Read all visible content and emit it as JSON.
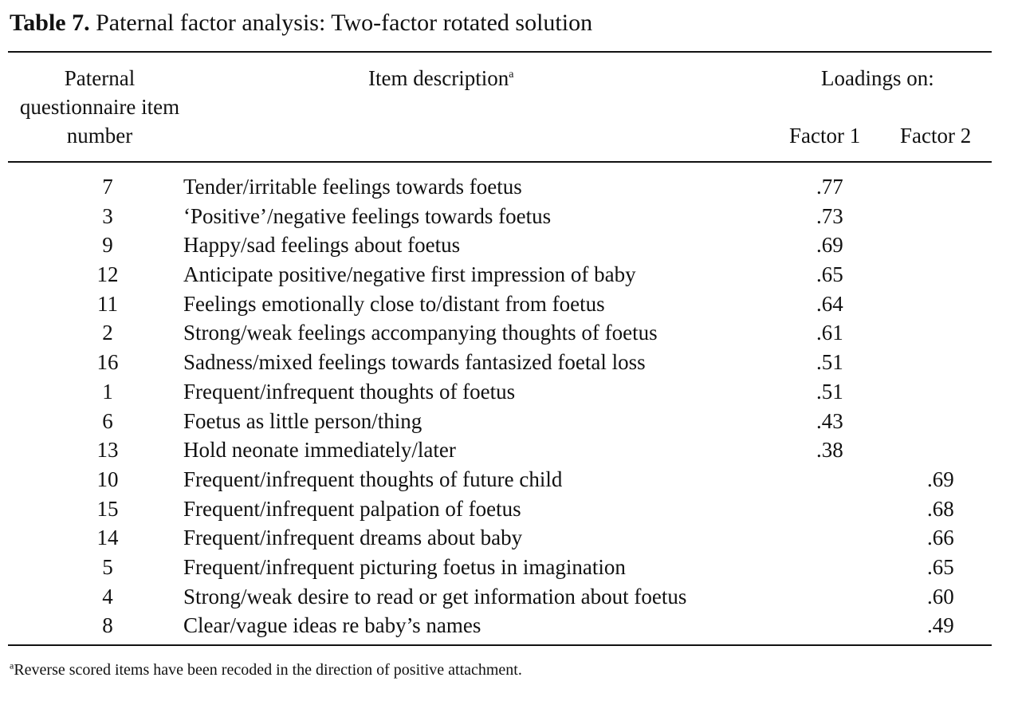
{
  "caption": {
    "label": "Table 7.",
    "text": " Paternal factor analysis: Two-factor rotated solution"
  },
  "header": {
    "item_number": "Paternal questionnaire item number",
    "item_description": "Item description",
    "item_description_note": "a",
    "loadings": "Loadings on:",
    "factor1": "Factor 1",
    "factor2": "Factor 2"
  },
  "rows": [
    {
      "num": "7",
      "desc": "Tender/irritable feelings towards foetus",
      "f1": ".77",
      "f2": ""
    },
    {
      "num": "3",
      "desc": "‘Positive’/negative feelings towards foetus",
      "f1": ".73",
      "f2": ""
    },
    {
      "num": "9",
      "desc": "Happy/sad feelings about foetus",
      "f1": ".69",
      "f2": ""
    },
    {
      "num": "12",
      "desc": "Anticipate positive/negative first impression of baby",
      "f1": ".65",
      "f2": ""
    },
    {
      "num": "11",
      "desc": "Feelings emotionally close to/distant from foetus",
      "f1": ".64",
      "f2": ""
    },
    {
      "num": "2",
      "desc": "Strong/weak feelings accompanying thoughts of foetus",
      "f1": ".61",
      "f2": ""
    },
    {
      "num": "16",
      "desc": "Sadness/mixed feelings towards fantasized foetal loss",
      "f1": ".51",
      "f2": ""
    },
    {
      "num": "1",
      "desc": "Frequent/infrequent thoughts of foetus",
      "f1": ".51",
      "f2": ""
    },
    {
      "num": "6",
      "desc": "Foetus as little person/thing",
      "f1": ".43",
      "f2": ""
    },
    {
      "num": "13",
      "desc": "Hold neonate immediately/later",
      "f1": ".38",
      "f2": ""
    },
    {
      "num": "10",
      "desc": "Frequent/infrequent thoughts of future child",
      "f1": "",
      "f2": ".69"
    },
    {
      "num": "15",
      "desc": "Frequent/infrequent palpation of foetus",
      "f1": "",
      "f2": ".68"
    },
    {
      "num": "14",
      "desc": "Frequent/infrequent dreams about baby",
      "f1": "",
      "f2": ".66"
    },
    {
      "num": "5",
      "desc": "Frequent/infrequent picturing foetus in imagination",
      "f1": "",
      "f2": ".65"
    },
    {
      "num": "4",
      "desc": "Strong/weak desire to read or get information about foetus",
      "f1": "",
      "f2": ".60"
    },
    {
      "num": "8",
      "desc": "Clear/vague ideas re baby’s names",
      "f1": "",
      "f2": ".49"
    }
  ],
  "footnote": {
    "marker": "a",
    "text": "Reverse scored items have been recoded in the direction of positive attachment."
  }
}
